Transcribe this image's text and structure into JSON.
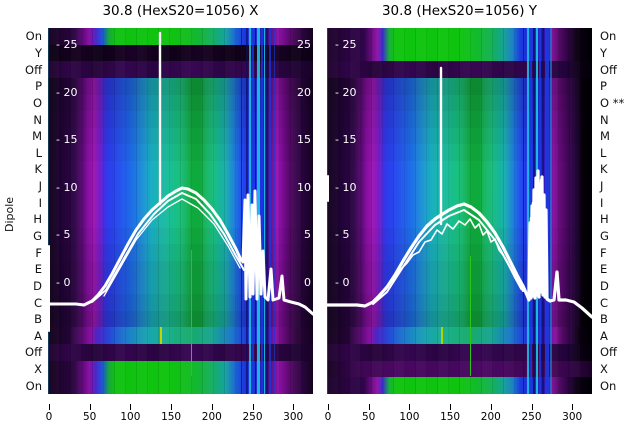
{
  "figure": {
    "left_axis_label": "Dipole",
    "row_labels_left": [
      "On",
      "Y",
      "Off",
      "P",
      "O",
      "N",
      "M",
      "L",
      "K",
      "J",
      "I",
      "H",
      "G",
      "F",
      "E",
      "D",
      "C",
      "B",
      "A",
      "Off",
      "X",
      "On"
    ],
    "row_labels_right": [
      "On",
      "Y",
      "Off",
      "P",
      "O **",
      "N",
      "M",
      "L",
      "K",
      "J",
      "I",
      "H",
      "G",
      "F",
      "E",
      "D",
      "C",
      "B",
      "A",
      "Off",
      "X",
      "On"
    ]
  },
  "chart_data": {
    "type": "heatmap",
    "description": "Two heatmap panels (dipole rows vs position 0-300) with overlaid white orbit curves, a tall white spike near x=140, and noisy spike cluster near x=250",
    "x_ticks": [
      0,
      50,
      100,
      150,
      200,
      250,
      300
    ],
    "x_range": [
      0,
      326
    ],
    "inner_y_ticks": [
      25,
      20,
      15,
      10,
      5,
      0
    ],
    "legend": "none",
    "grid": false,
    "panels": [
      {
        "id": "X",
        "title": "30.8 (HexS20=1056) X",
        "right_edge_labels": true,
        "row_types": [
          "green",
          "ydark",
          "off",
          "m0",
          "m1",
          "m2",
          "m3",
          "m4",
          "m5",
          "m5",
          "m5",
          "m5",
          "m4",
          "m3",
          "m2",
          "m2",
          "m1",
          "m0",
          "arow",
          "off",
          "green",
          "green"
        ],
        "stripes": [
          {
            "x": 0,
            "w": 1,
            "c": "#18a0c8",
            "o": 0.35
          },
          {
            "x": 193,
            "w": 1,
            "c": "#0a0a50",
            "o": 0.55
          },
          {
            "x": 198,
            "w": 2,
            "c": "#0c0c60",
            "o": 0.6
          },
          {
            "x": 201,
            "w": 2,
            "c": "#19c8e8",
            "o": 0.85
          },
          {
            "x": 204,
            "w": 2,
            "c": "#1a38e0",
            "o": 0.8
          },
          {
            "x": 207,
            "w": 1,
            "c": "#0a0850",
            "o": 0.6
          },
          {
            "x": 209,
            "w": 3,
            "c": "#19c8e8",
            "o": 0.9
          },
          {
            "x": 213,
            "w": 2,
            "c": "#1a38e0",
            "o": 0.8
          },
          {
            "x": 216,
            "w": 1,
            "c": "#19c8e8",
            "o": 0.85
          },
          {
            "x": 218,
            "w": 2,
            "c": "#0c0c60",
            "o": 0.6
          },
          {
            "x": 221,
            "w": 2,
            "c": "#1a38e0",
            "o": 0.75
          },
          {
            "x": 226,
            "w": 1,
            "c": "#1a38e0",
            "o": 0.6
          }
        ],
        "markers": [
          {
            "x": 112,
            "y1": 299,
            "y2": 316,
            "c": "#c8d400",
            "w": 2
          },
          {
            "x": 143,
            "y1": 222,
            "y2": 348,
            "c": "#28c818",
            "w": 1
          }
        ],
        "series": [
          {
            "name": "main-curve",
            "w": 3,
            "pts": [
              [
                0,
                276
              ],
              [
                28,
                276
              ],
              [
                36,
                277
              ],
              [
                44,
                273
              ],
              [
                50,
                267
              ],
              [
                57,
                258
              ],
              [
                64,
                246
              ],
              [
                72,
                231
              ],
              [
                80,
                216
              ],
              [
                88,
                202
              ],
              [
                96,
                191
              ],
              [
                104,
                182
              ],
              [
                112,
                175
              ],
              [
                120,
                168
              ],
              [
                128,
                163
              ],
              [
                134,
                160
              ],
              [
                140,
                161
              ],
              [
                148,
                165
              ],
              [
                156,
                172
              ],
              [
                164,
                181
              ],
              [
                172,
                192
              ],
              [
                180,
                206
              ],
              [
                188,
                221
              ],
              [
                193,
                232
              ],
              [
                195,
                234
              ],
              [
                197,
                172
              ],
              [
                198,
                271
              ],
              [
                200,
                167
              ],
              [
                202,
                269
              ],
              [
                204,
                177
              ],
              [
                205,
                266
              ],
              [
                207,
                163
              ],
              [
                209,
                271
              ],
              [
                211,
                188
              ],
              [
                213,
                266
              ],
              [
                215,
                223
              ],
              [
                217,
                269
              ],
              [
                220,
                272
              ],
              [
                223,
                241
              ],
              [
                225,
                272
              ],
              [
                231,
                270
              ],
              [
                234,
                248
              ],
              [
                236,
                272
              ],
              [
                243,
                274
              ],
              [
                251,
                276
              ],
              [
                257,
                279
              ],
              [
                265,
                286
              ]
            ]
          },
          {
            "name": "bundle-curve-2",
            "w": 2,
            "pts": [
              [
                44,
                274
              ],
              [
                58,
                262
              ],
              [
                74,
                234
              ],
              [
                90,
                206
              ],
              [
                106,
                186
              ],
              [
                120,
                173
              ],
              [
                134,
                165
              ],
              [
                148,
                171
              ],
              [
                162,
                186
              ],
              [
                176,
                206
              ],
              [
                188,
                228
              ],
              [
                196,
                242
              ]
            ]
          },
          {
            "name": "bundle-curve-3",
            "w": 1.3,
            "pts": [
              [
                56,
                268
              ],
              [
                72,
                240
              ],
              [
                88,
                212
              ],
              [
                104,
                192
              ],
              [
                120,
                179
              ],
              [
                134,
                171
              ],
              [
                150,
                180
              ],
              [
                166,
                196
              ],
              [
                180,
                218
              ],
              [
                192,
                240
              ]
            ]
          },
          {
            "name": "vertical-spike",
            "w": 2.4,
            "pts": [
              [
                112,
                176
              ],
              [
                112,
                5
              ]
            ]
          },
          {
            "name": "left-edge-segment",
            "w": 2,
            "pts": [
              [
                1,
                218
              ],
              [
                1,
                303
              ]
            ]
          }
        ]
      },
      {
        "id": "Y",
        "title": "30.8 (HexS20=1056) Y",
        "right_edge_labels": false,
        "row_types": [
          "greenR",
          "greenR",
          "offR",
          "m0R",
          "m1R",
          "m2R",
          "m3R",
          "m4R",
          "m5R",
          "m5R",
          "m5R",
          "m5R",
          "m4R",
          "m3R",
          "m2R",
          "m2R",
          "m1R",
          "m0R",
          "arowR",
          "offR",
          "xpurple",
          "greenR"
        ],
        "stripes": [
          {
            "x": 0,
            "w": 1,
            "c": "#20c020",
            "o": 0.4
          },
          {
            "x": 196,
            "w": 1,
            "c": "#0c0c60",
            "o": 0.6
          },
          {
            "x": 200,
            "w": 2,
            "c": "#19c8e8",
            "o": 0.85
          },
          {
            "x": 203,
            "w": 2,
            "c": "#1a38e0",
            "o": 0.8
          },
          {
            "x": 206,
            "w": 2,
            "c": "#0a0850",
            "o": 0.65
          },
          {
            "x": 209,
            "w": 2,
            "c": "#19c8e8",
            "o": 0.9
          },
          {
            "x": 212,
            "w": 2,
            "c": "#1a38e0",
            "o": 0.8
          },
          {
            "x": 215,
            "w": 2,
            "c": "#0c0c60",
            "o": 0.6
          },
          {
            "x": 218,
            "w": 4,
            "c": "#1d3ae0",
            "o": 0.9
          },
          {
            "x": 223,
            "w": 2,
            "c": "#1a80d0",
            "o": 0.7
          }
        ],
        "markers": [
          {
            "x": 114,
            "y1": 299,
            "y2": 316,
            "c": "#b0d400",
            "w": 2
          },
          {
            "x": 143,
            "y1": 228,
            "y2": 348,
            "c": "#28c818",
            "w": 1
          }
        ],
        "series": [
          {
            "name": "main-curve",
            "w": 3.2,
            "pts": [
              [
                0,
                277
              ],
              [
                30,
                277
              ],
              [
                38,
                278
              ],
              [
                46,
                274
              ],
              [
                52,
                268
              ],
              [
                60,
                259
              ],
              [
                68,
                247
              ],
              [
                76,
                233
              ],
              [
                84,
                220
              ],
              [
                92,
                208
              ],
              [
                100,
                198
              ],
              [
                108,
                191
              ],
              [
                114,
                187
              ],
              [
                122,
                182
              ],
              [
                130,
                178
              ],
              [
                137,
                176
              ],
              [
                144,
                179
              ],
              [
                152,
                185
              ],
              [
                160,
                194
              ],
              [
                168,
                205
              ],
              [
                176,
                219
              ],
              [
                184,
                235
              ],
              [
                190,
                247
              ],
              [
                196,
                258
              ],
              [
                200,
                267
              ],
              [
                202,
                272
              ],
              [
                203,
                195
              ],
              [
                204,
                270
              ],
              [
                205,
                178
              ],
              [
                206,
                268
              ],
              [
                207,
                162
              ],
              [
                208,
                270
              ],
              [
                209,
                150
              ],
              [
                210,
                267
              ],
              [
                211,
                143
              ],
              [
                212,
                269
              ],
              [
                213,
                156
              ],
              [
                214,
                264
              ],
              [
                215,
                149
              ],
              [
                216,
                267
              ],
              [
                217,
                167
              ],
              [
                218,
                269
              ],
              [
                219,
                182
              ],
              [
                220,
                271
              ],
              [
                223,
                273
              ],
              [
                227,
                272
              ],
              [
                230,
                244
              ],
              [
                232,
                272
              ],
              [
                239,
                272
              ],
              [
                247,
                274
              ],
              [
                255,
                280
              ],
              [
                265,
                289
              ]
            ]
          },
          {
            "name": "bundle-curve-2",
            "w": 2,
            "pts": [
              [
                46,
                276
              ],
              [
                60,
                264
              ],
              [
                76,
                239
              ],
              [
                92,
                214
              ],
              [
                108,
                197
              ],
              [
                122,
                188
              ],
              [
                137,
                182
              ],
              [
                152,
                192
              ],
              [
                168,
                212
              ],
              [
                184,
                241
              ],
              [
                196,
                263
              ]
            ]
          },
          {
            "name": "wiggle-curve",
            "w": 1.6,
            "pts": [
              [
                66,
                253
              ],
              [
                74,
                241
              ],
              [
                80,
                235
              ],
              [
                86,
                227
              ],
              [
                92,
                224
              ],
              [
                98,
                214
              ],
              [
                104,
                212
              ],
              [
                110,
                202
              ],
              [
                115,
                206
              ],
              [
                120,
                196
              ],
              [
                126,
                201
              ],
              [
                132,
                193
              ],
              [
                138,
                197
              ],
              [
                143,
                191
              ],
              [
                148,
                200
              ],
              [
                152,
                196
              ],
              [
                156,
                207
              ],
              [
                160,
                203
              ],
              [
                164,
                214
              ],
              [
                168,
                211
              ],
              [
                172,
                222
              ],
              [
                176,
                227
              ],
              [
                182,
                238
              ],
              [
                188,
                250
              ],
              [
                194,
                261
              ]
            ]
          },
          {
            "name": "chaos-cluster",
            "w": 2.5,
            "pts": [
              [
                204,
                268
              ],
              [
                204,
                190
              ],
              [
                206,
                265
              ],
              [
                206,
                175
              ],
              [
                208,
                263
              ],
              [
                209,
                158
              ],
              [
                210,
                262
              ],
              [
                211,
                148
              ],
              [
                213,
                260
              ],
              [
                214,
                152
              ],
              [
                216,
                262
              ],
              [
                217,
                168
              ],
              [
                218,
                264
              ]
            ]
          },
          {
            "name": "vertical-spike",
            "w": 2.4,
            "pts": [
              [
                114,
                196
              ],
              [
                114,
                40
              ]
            ]
          },
          {
            "name": "left-edge-segment",
            "w": 2,
            "pts": [
              [
                1,
                148
              ],
              [
                1,
                173
              ]
            ]
          }
        ]
      }
    ]
  }
}
